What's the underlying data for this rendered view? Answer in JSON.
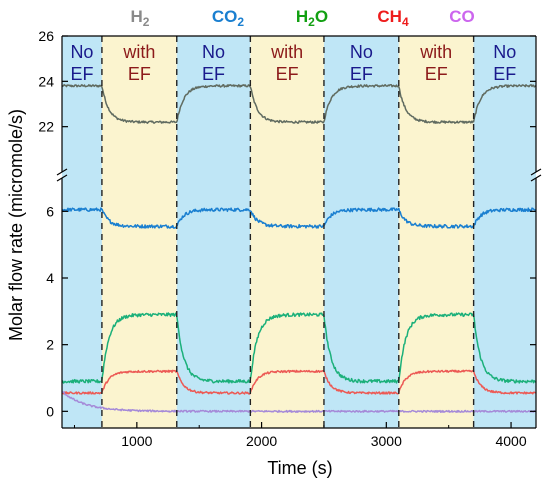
{
  "chart_data": {
    "type": "line",
    "xlabel": "Time (s)",
    "ylabel": "Molar flow rate (micromole/s)",
    "xlim": [
      400,
      4200
    ],
    "x_ticks": [
      1000,
      2000,
      3000,
      4000
    ],
    "x_tick_labels": [
      "1000",
      "2000",
      "3000",
      "4000"
    ],
    "y_broken": true,
    "y_segments": [
      {
        "name": "lower",
        "ylim": [
          -0.5,
          7.0
        ],
        "ticks": [
          0,
          2,
          4,
          6
        ],
        "tick_labels": [
          "0",
          "2",
          "4",
          "6"
        ]
      },
      {
        "name": "upper",
        "ylim": [
          20.0,
          26.0
        ],
        "ticks": [
          22,
          24,
          26
        ],
        "tick_labels": [
          "22",
          "24",
          "26"
        ]
      }
    ],
    "regions": [
      {
        "start": 400,
        "end": 720,
        "state": "noef",
        "line1": "No",
        "line2": "EF"
      },
      {
        "start": 720,
        "end": 1320,
        "state": "withef",
        "line1": "with",
        "line2": "EF"
      },
      {
        "start": 1320,
        "end": 1910,
        "state": "noef",
        "line1": "No",
        "line2": "EF"
      },
      {
        "start": 1910,
        "end": 2500,
        "state": "withef",
        "line1": "with",
        "line2": "EF"
      },
      {
        "start": 2500,
        "end": 3100,
        "state": "noef",
        "line1": "No",
        "line2": "EF"
      },
      {
        "start": 3100,
        "end": 3700,
        "state": "withef",
        "line1": "with",
        "line2": "EF"
      },
      {
        "start": 3700,
        "end": 4200,
        "state": "noef",
        "line1": "No",
        "line2": "EF"
      }
    ],
    "transitions": [
      720,
      1320,
      1910,
      2500,
      3100,
      3700
    ],
    "series": [
      {
        "name": "H2",
        "base": "H",
        "sub": "2",
        "color": "#606b60",
        "segment": "upper",
        "noef_level": 23.8,
        "ef_level": 22.2,
        "noise": 0.05
      },
      {
        "name": "CO2",
        "base": "CO",
        "sub": "2",
        "color": "#1a7fd0",
        "segment": "lower",
        "noef_level": 6.05,
        "ef_level": 5.55,
        "noise": 0.05
      },
      {
        "name": "H2O",
        "base": "H",
        "sub": "2",
        "tail": "O",
        "color": "#1bb07a",
        "segment": "lower",
        "noef_level": 0.9,
        "ef_level": 2.9,
        "noise": 0.05
      },
      {
        "name": "CH4",
        "base": "CH",
        "sub": "4",
        "color": "#ec5a55",
        "segment": "lower",
        "noef_level": 0.55,
        "ef_level": 1.2,
        "noise": 0.03
      },
      {
        "name": "CO",
        "base": "CO",
        "color": "#a58ad8",
        "segment": "lower",
        "noef_level": 0.0,
        "ef_level": 0.0,
        "noise": 0.025,
        "start_level": 0.6
      }
    ],
    "legend_colors": [
      "#8a8a8a",
      "#1a7fd0",
      "#12a012",
      "#ee1c1c",
      "#cc66ee"
    ],
    "region_colors": {
      "noef": "#bfe6f6",
      "withef": "#fbf4cf"
    },
    "region_text_colors": {
      "noef": "#1a1a8c",
      "withef": "#8c1a1a"
    }
  }
}
